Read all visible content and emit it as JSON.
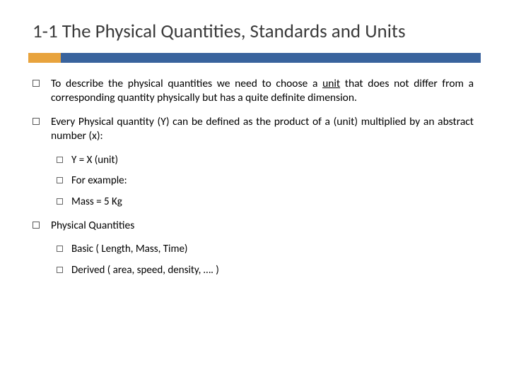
{
  "colors": {
    "accent_left": "#e8a33d",
    "accent_right": "#39639d",
    "title_color": "#3b3b3b",
    "text_color": "#000000",
    "bullet_border": "#5a5a5a",
    "background": "#ffffff"
  },
  "typography": {
    "title_fontsize": 27,
    "body_fontsize": 15.5,
    "sub_fontsize": 15,
    "font_family": "Calibri"
  },
  "title": "1-1 The Physical Quantities, Standards and Units",
  "items": [
    {
      "text_pre": "To describe the physical quantities we need to choose a ",
      "text_underlined": "unit",
      "text_post": " that does not differ from a corresponding quantity physically but has a quite definite dimension."
    },
    {
      "text": "Every Physical quantity (Y) can be defined as the product of a (unit) multiplied by an abstract number (x):",
      "sub": [
        "Y = X (unit)",
        "For example:",
        "Mass = 5 Kg"
      ]
    },
    {
      "text": "Physical Quantities",
      "sub": [
        "Basic ( Length, Mass, Time)",
        "Derived ( area, speed, density, …. )"
      ]
    }
  ]
}
